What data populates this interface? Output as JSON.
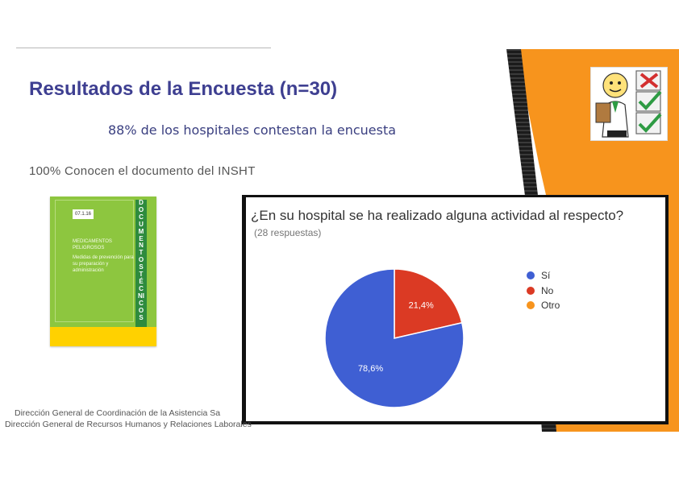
{
  "slide": {
    "title": "Resultados de la Encuesta (n=30)",
    "subtitle": "88% de los hospitales contestan la encuesta",
    "statement": "100% Conocen el documento del INSHT",
    "footer_line1": "Dirección General de Coordinación de la Asistencia Sa",
    "footer_line2": "Dirección General de Recursos Humanos y Relaciones Laborales"
  },
  "book": {
    "code": "07.1.16",
    "title_lines": "MEDICAMENTOS PELIGROSOS",
    "subtitle_lines": "Medidas de prevención para su preparación y administración",
    "spine_letters": "DOCUMENTOS TÉCNICOS"
  },
  "colors": {
    "accent": "#3e3f91",
    "orange": "#f7941d",
    "si": "#3f5fd3",
    "no": "#db3a24",
    "otro": "#f7941d"
  },
  "chart_data": {
    "type": "pie",
    "title": "¿En su hospital se ha realizado alguna actividad al respecto?",
    "subtitle": "(28 respuestas)",
    "legend_position": "right",
    "slices": [
      {
        "name": "Sí",
        "value": 78.6,
        "label": "78,6%",
        "color": "#3f5fd3"
      },
      {
        "name": "No",
        "value": 21.4,
        "label": "21,4%",
        "color": "#db3a24"
      },
      {
        "name": "Otro",
        "value": 0,
        "label": "",
        "color": "#f7941d"
      }
    ]
  }
}
